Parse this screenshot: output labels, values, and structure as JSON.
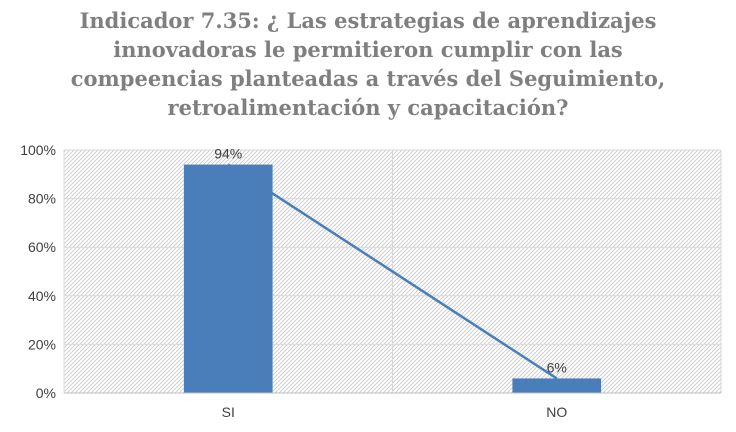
{
  "chart_data": {
    "type": "bar",
    "title_lines": [
      "Indicador 7.35: ¿ Las estrategias de aprendizajes",
      "innovadoras le permitieron cumplir con las",
      "compeencias planteadas a través del Seguimiento,",
      "retroalimentación y capacitación?"
    ],
    "categories": [
      "SI",
      "NO"
    ],
    "values": [
      94,
      6
    ],
    "data_labels": [
      "94%",
      "6%"
    ],
    "y_ticks": [
      "0%",
      "20%",
      "40%",
      "60%",
      "80%",
      "100%"
    ],
    "ylim": [
      0,
      100
    ],
    "grid": true,
    "overlay_line": true,
    "colors": {
      "bar": "#4a7ebb",
      "line": "#4a7ebb",
      "title": "#7f7f7f"
    }
  }
}
